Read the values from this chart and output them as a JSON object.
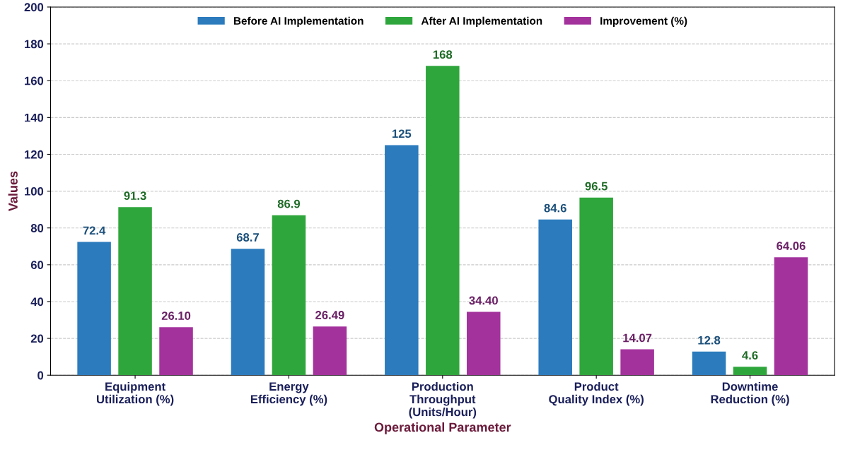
{
  "chart_data": {
    "type": "bar",
    "xlabel": "Operational Parameter",
    "ylabel": "Values",
    "categories": [
      "Equipment\nUtilization (%)",
      "Energy\nEfficiency (%)",
      "Production\nThroughput\n(Units/Hour)",
      "Product\nQuality Index (%)",
      "Downtime\nReduction (%)"
    ],
    "series": [
      {
        "name": "Before AI Implementation",
        "color": "#2b7bbd",
        "values": [
          72.4,
          68.7,
          125,
          84.6,
          12.8
        ],
        "value_labels": [
          "72.4",
          "68.7",
          "125",
          "84.6",
          "12.8"
        ]
      },
      {
        "name": "After AI Implementation",
        "color": "#2fa63c",
        "values": [
          91.3,
          86.9,
          168,
          96.5,
          4.6
        ],
        "value_labels": [
          "91.3",
          "86.9",
          "168",
          "96.5",
          "4.6"
        ]
      },
      {
        "name": "Improvement (%)",
        "color": "#a3329c",
        "values": [
          26.1,
          26.49,
          34.4,
          14.07,
          64.06
        ],
        "value_labels": [
          "26.10",
          "26.49",
          "34.40",
          "14.07",
          "64.06"
        ]
      }
    ],
    "ylim": [
      0,
      200
    ],
    "yticks": [
      0,
      20,
      40,
      60,
      80,
      100,
      120,
      140,
      160,
      180,
      200
    ],
    "grid": "y",
    "legend": "top"
  }
}
